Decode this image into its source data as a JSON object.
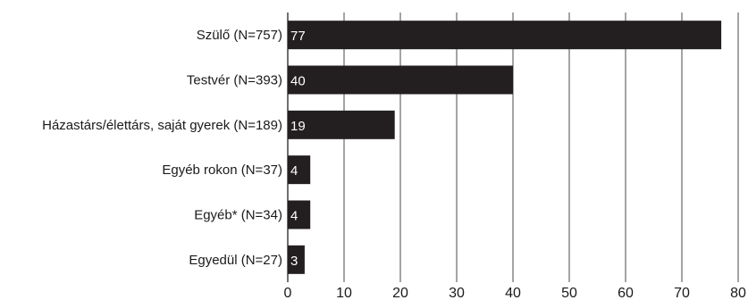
{
  "chart_data": {
    "type": "bar",
    "orientation": "horizontal",
    "title": "",
    "xlabel": "",
    "ylabel": "",
    "categories": [
      "Szülő (N=757)",
      "Testvér (N=393)",
      "Házastárs/élettárs, saját gyerek (N=189)",
      "Egyéb rokon (N=37)",
      "Egyéb* (N=34)",
      "Egyedül (N=27)"
    ],
    "values": [
      77,
      40,
      19,
      4,
      4,
      3
    ],
    "data_labels": [
      "77",
      "40",
      "19",
      "4",
      "4",
      "3"
    ],
    "xlim": [
      0,
      80
    ],
    "xticks": [
      0,
      10,
      20,
      30,
      40,
      50,
      60,
      70,
      80
    ],
    "xtick_labels": [
      "0",
      "10",
      "20",
      "30",
      "40",
      "50",
      "60",
      "70",
      "80"
    ],
    "grid": "vertical",
    "legend": "none",
    "bar_color": "#231f20",
    "label_color": "#ffffff"
  }
}
